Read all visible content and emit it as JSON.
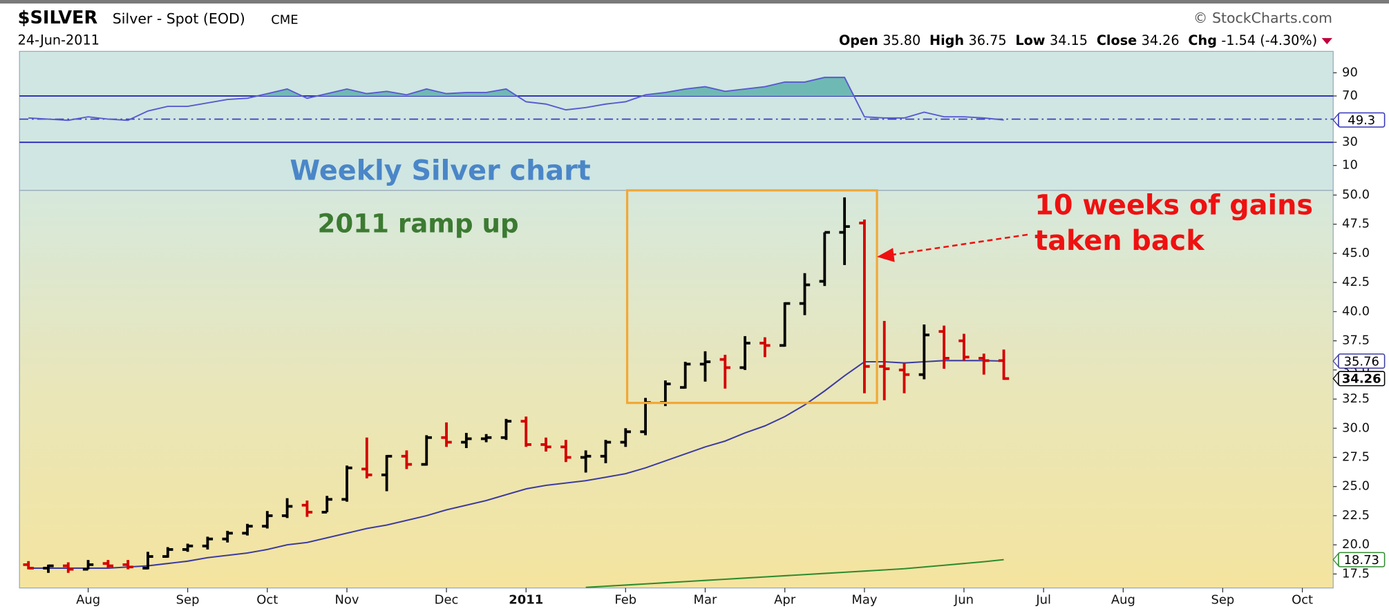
{
  "header": {
    "symbol": "$SILVER",
    "name": "Silver - Spot (EOD)",
    "exchange": "CME",
    "date": "24-Jun-2011",
    "source": "© StockCharts.com",
    "stats": [
      {
        "label": "Open",
        "value": "35.80"
      },
      {
        "label": "High",
        "value": "36.75"
      },
      {
        "label": "Low",
        "value": "34.15"
      },
      {
        "label": "Close",
        "value": "34.26"
      },
      {
        "label": "Chg",
        "value": "-1.54 (-4.30%)"
      }
    ]
  },
  "chart_data": {
    "type": "ohlc",
    "categories": [
      null,
      null,
      null,
      "Aug",
      null,
      null,
      null,
      null,
      "Sep",
      null,
      null,
      null,
      "Oct",
      null,
      null,
      null,
      "Nov",
      null,
      null,
      null,
      null,
      "Dec",
      null,
      null,
      null,
      "2011",
      null,
      null,
      null,
      null,
      "Feb",
      null,
      null,
      null,
      "Mar",
      null,
      null,
      null,
      "Apr",
      null,
      null,
      null,
      "May",
      null,
      null,
      null,
      null,
      "Jun",
      null,
      null,
      null,
      "Jul",
      null,
      null,
      null,
      "Aug",
      null,
      null,
      null,
      null,
      "Sep",
      null,
      null,
      null,
      "Oct",
      null
    ],
    "open": [
      18.3,
      18.0,
      18.2,
      17.9,
      18.4,
      18.3,
      18.0,
      19.0,
      19.6,
      19.9,
      20.5,
      21.0,
      21.6,
      22.5,
      23.4,
      22.8,
      23.9,
      26.5,
      26.0,
      27.6,
      26.9,
      29.2,
      28.8,
      29.1,
      29.2,
      30.6,
      28.6,
      28.4,
      27.5,
      27.6,
      28.8,
      29.7,
      32.2,
      33.5,
      35.5,
      35.9,
      35.2,
      37.3,
      37.1,
      40.7,
      42.6,
      46.8,
      47.6,
      35.3,
      35.0,
      34.6,
      38.3,
      37.5,
      36.0,
      35.8,
      null,
      null,
      null,
      null,
      null,
      null,
      null,
      null,
      null,
      null,
      null,
      null,
      null,
      null,
      null,
      null
    ],
    "high": [
      18.6,
      18.3,
      18.5,
      18.7,
      18.7,
      18.7,
      19.4,
      19.8,
      20.1,
      20.7,
      21.2,
      21.8,
      22.9,
      24.0,
      23.8,
      24.2,
      26.8,
      29.2,
      27.7,
      28.1,
      29.4,
      30.5,
      29.6,
      29.5,
      30.8,
      31.0,
      29.2,
      29.0,
      28.1,
      29.0,
      30.0,
      32.6,
      34.1,
      35.7,
      36.6,
      36.3,
      37.9,
      37.8,
      40.8,
      43.3,
      46.8,
      49.8,
      47.9,
      39.2,
      35.6,
      38.9,
      38.8,
      38.1,
      36.4,
      36.75,
      null,
      null,
      null,
      null,
      null,
      null,
      null,
      null,
      null,
      null,
      null,
      null,
      null,
      null,
      null,
      null
    ],
    "low": [
      17.9,
      17.6,
      17.6,
      17.9,
      18.0,
      17.9,
      17.9,
      18.9,
      19.4,
      19.6,
      20.2,
      20.8,
      21.4,
      22.3,
      22.4,
      22.8,
      23.7,
      25.7,
      24.6,
      26.5,
      26.8,
      28.4,
      28.3,
      28.8,
      29.0,
      28.4,
      28.0,
      27.1,
      26.2,
      27.0,
      28.4,
      29.4,
      31.9,
      33.4,
      34.0,
      33.4,
      35.0,
      36.1,
      37.0,
      39.7,
      42.2,
      44.0,
      33.0,
      32.4,
      33.0,
      34.2,
      35.1,
      35.8,
      34.6,
      34.15,
      null,
      null,
      null,
      null,
      null,
      null,
      null,
      null,
      null,
      null,
      null,
      null,
      null,
      null,
      null,
      null
    ],
    "close": [
      18.0,
      18.2,
      17.9,
      18.3,
      18.2,
      18.1,
      19.0,
      19.6,
      19.9,
      20.5,
      21.0,
      21.6,
      22.5,
      23.3,
      22.8,
      23.9,
      26.6,
      26.0,
      27.6,
      26.9,
      29.2,
      28.8,
      29.1,
      29.2,
      30.6,
      28.6,
      28.4,
      27.5,
      27.6,
      28.8,
      29.7,
      32.2,
      33.8,
      35.5,
      35.7,
      35.2,
      37.3,
      37.1,
      40.7,
      42.3,
      46.8,
      47.3,
      35.3,
      35.1,
      34.6,
      38.0,
      36.0,
      36.1,
      35.8,
      34.26,
      null,
      null,
      null,
      null,
      null,
      null,
      null,
      null,
      null,
      null,
      null,
      null,
      null,
      null,
      null,
      null
    ],
    "up_color": "#000000",
    "down_color": "#d40000",
    "overlays": [
      {
        "color": "#3c3ca0",
        "values": [
          18.0,
          18.0,
          18.0,
          18.0,
          18.0,
          18.1,
          18.2,
          18.4,
          18.6,
          18.9,
          19.1,
          19.3,
          19.6,
          20.0,
          20.2,
          20.6,
          21.0,
          21.4,
          21.7,
          22.1,
          22.5,
          23.0,
          23.4,
          23.8,
          24.3,
          24.8,
          25.1,
          25.3,
          25.5,
          25.8,
          26.1,
          26.6,
          27.2,
          27.8,
          28.4,
          28.9,
          29.6,
          30.2,
          31.0,
          32.0,
          33.2,
          34.5,
          35.7,
          35.7,
          35.6,
          35.7,
          35.8,
          35.8,
          35.8,
          35.76,
          null,
          null,
          null,
          null,
          null,
          null,
          null,
          null,
          null,
          null,
          null,
          null,
          null,
          null,
          null,
          null
        ]
      },
      {
        "color": "#2e8b2e",
        "values": [
          null,
          null,
          null,
          null,
          null,
          null,
          null,
          null,
          null,
          null,
          null,
          null,
          null,
          null,
          null,
          null,
          null,
          null,
          null,
          null,
          null,
          null,
          null,
          null,
          null,
          null,
          null,
          null,
          16.35,
          16.45,
          16.55,
          16.65,
          16.75,
          16.85,
          16.95,
          17.05,
          17.15,
          17.25,
          17.35,
          17.45,
          17.55,
          17.65,
          17.75,
          17.85,
          17.95,
          18.1,
          18.25,
          18.4,
          18.55,
          18.73,
          null,
          null,
          null,
          null,
          null,
          null,
          null,
          null,
          null,
          null,
          null,
          null,
          null,
          null,
          null,
          null
        ]
      }
    ],
    "ylim": [
      16.3,
      50.4
    ],
    "yticks": [
      17.5,
      {
        "value": 20,
        "label": "20.0"
      },
      22.5,
      {
        "value": 25,
        "label": "25.0"
      },
      27.5,
      {
        "value": 30,
        "label": "30.0"
      },
      32.5,
      {
        "value": 35,
        "label": "35.0"
      },
      37.5,
      {
        "value": 40,
        "label": "40.0"
      },
      42.5,
      {
        "value": 45,
        "label": "45.0"
      },
      47.5,
      {
        "value": 50,
        "label": "50.0"
      }
    ],
    "indicator": {
      "type": "line",
      "color": "#5a5ad0",
      "fill_color": "#6fb9b4",
      "values": [
        51,
        50,
        49,
        52,
        50,
        49,
        57,
        61,
        61,
        64,
        67,
        68,
        72,
        76,
        68,
        72,
        76,
        72,
        74,
        71,
        76,
        72,
        73,
        73,
        76,
        65,
        63,
        58,
        60,
        63,
        65,
        71,
        73,
        76,
        78,
        74,
        76,
        78,
        82,
        82,
        86,
        86,
        52,
        51,
        51,
        56,
        52,
        52,
        51,
        49.3,
        null,
        null,
        null,
        null,
        null,
        null,
        null,
        null,
        null,
        null,
        null,
        null,
        null,
        null,
        null,
        null
      ],
      "ylim": [
        -11.5,
        108.5
      ],
      "yticks": [
        10,
        30,
        70,
        90
      ],
      "bands": [
        30,
        70
      ],
      "center": 50
    },
    "annotations": [
      "Weekly Silver chart",
      "2011 ramp up",
      "10 weeks of gains",
      "taken back"
    ]
  }
}
